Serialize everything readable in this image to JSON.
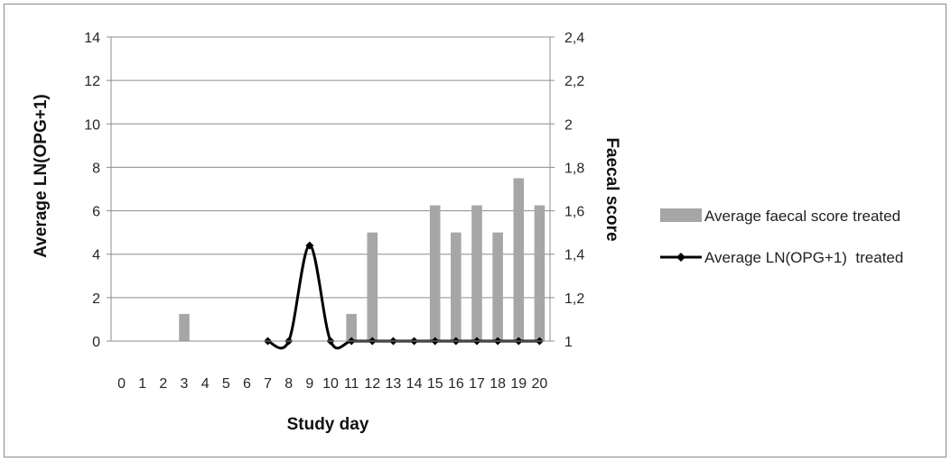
{
  "chart_data": {
    "type": "bar+line",
    "xlabel": "Study day",
    "ylabel_left": "Average LN(OPG+1)",
    "ylabel_right": "Faecal score",
    "categories": [
      "0",
      "1",
      "2",
      "3",
      "4",
      "5",
      "6",
      "7",
      "8",
      "9",
      "10",
      "11",
      "12",
      "13",
      "14",
      "15",
      "16",
      "17",
      "18",
      "19",
      "20"
    ],
    "left_axis": {
      "min": 0,
      "max": 14,
      "step": 2,
      "ticks": [
        "0",
        "2",
        "4",
        "6",
        "8",
        "10",
        "12",
        "14"
      ]
    },
    "right_axis": {
      "min": 1,
      "max": 2.4,
      "step": 0.2,
      "ticks": [
        "1",
        "1,2",
        "1,4",
        "1,6",
        "1,8",
        "2",
        "2,2",
        "2,4"
      ]
    },
    "grid": true,
    "legend_position": "right",
    "series": [
      {
        "name": "Average faecal score treated",
        "type": "bar",
        "axis": "right",
        "color": "#a6a6a6",
        "values": [
          null,
          null,
          null,
          1.125,
          null,
          null,
          null,
          null,
          null,
          null,
          null,
          1.125,
          1.5,
          null,
          null,
          1.625,
          1.5,
          1.625,
          1.5,
          1.75,
          1.625
        ]
      },
      {
        "name": "Average LN(OPG+1)  treated",
        "type": "line",
        "axis": "left",
        "color": "#000000",
        "marker": "diamond",
        "values": [
          null,
          null,
          null,
          null,
          null,
          null,
          null,
          0,
          0,
          4.4,
          0,
          0,
          0,
          0,
          0,
          0,
          0,
          0,
          0,
          0,
          0
        ]
      }
    ]
  }
}
